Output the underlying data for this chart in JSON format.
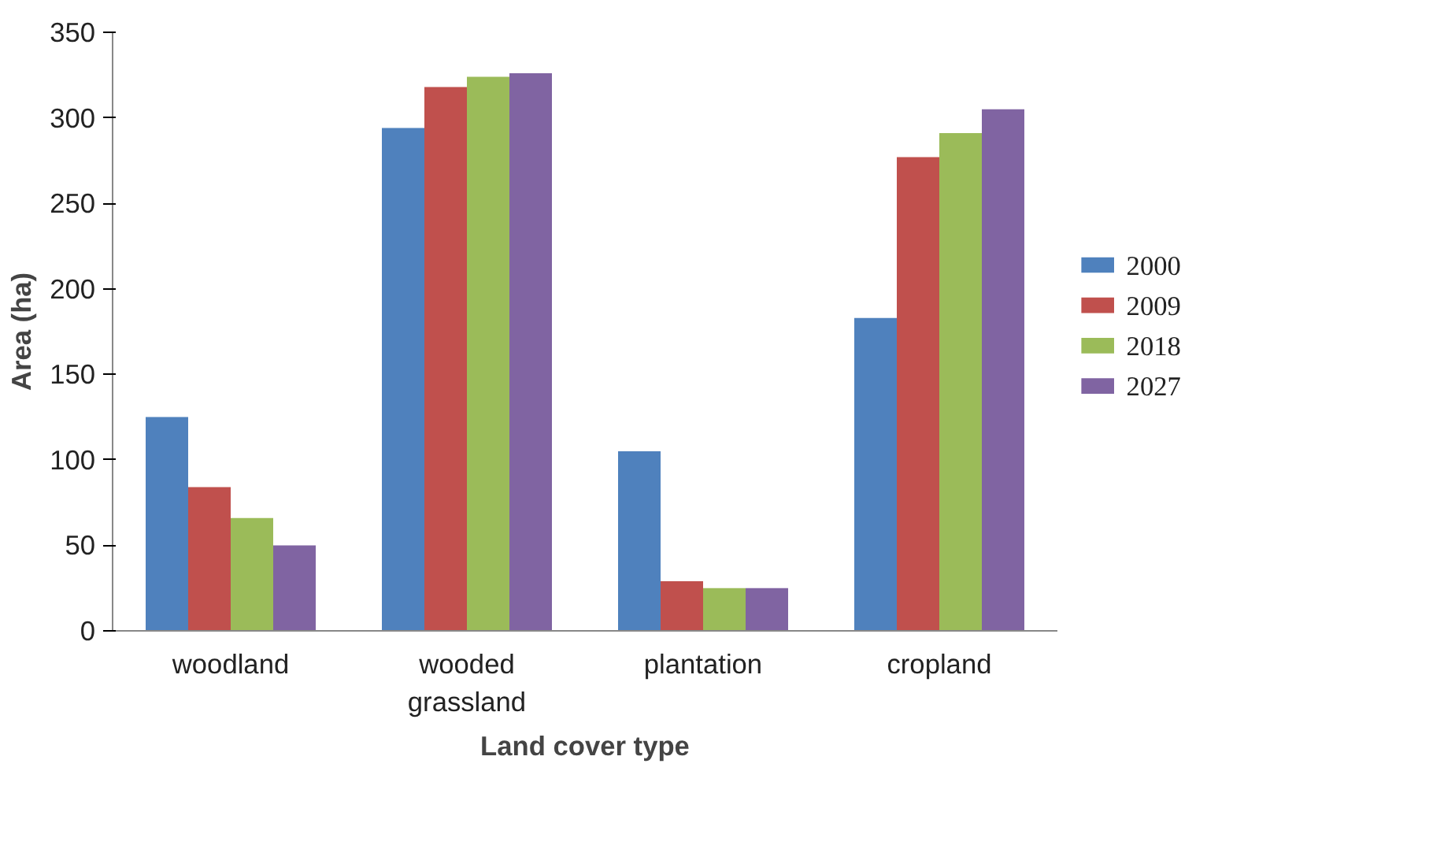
{
  "chart_data": {
    "type": "bar",
    "xlabel": "Land cover type",
    "ylabel": "Area (ha)",
    "categories": [
      "woodland",
      "wooded grassland",
      "plantation",
      "cropland"
    ],
    "series": [
      {
        "name": "2000",
        "color": "#4f81bd",
        "values": [
          125,
          294,
          105,
          183
        ]
      },
      {
        "name": "2009",
        "color": "#c0504d",
        "values": [
          84,
          318,
          29,
          277
        ]
      },
      {
        "name": "2018",
        "color": "#9bbb59",
        "values": [
          66,
          324,
          25,
          291
        ]
      },
      {
        "name": "2027",
        "color": "#8064a2",
        "values": [
          50,
          326,
          25,
          305
        ]
      }
    ],
    "ylim": [
      0,
      350
    ],
    "yticks": [
      0,
      50,
      100,
      150,
      200,
      250,
      300,
      350
    ],
    "grid": false,
    "legend": "right"
  }
}
